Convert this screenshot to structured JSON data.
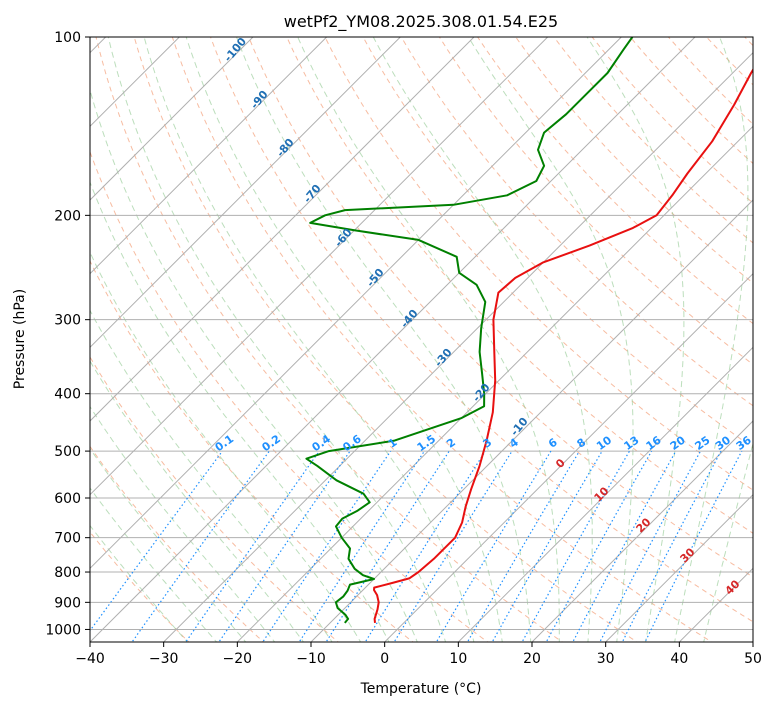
{
  "chart_data": {
    "type": "line",
    "title": "wetPf2_YM08.2025.308.01.54.E25",
    "xlabel": "Temperature (°C)",
    "ylabel": "Pressure (hPa)",
    "xlim": [
      -40,
      50
    ],
    "ylim": [
      1050,
      100
    ],
    "y_scale": "log",
    "grid": true,
    "x_ticks": [
      -40,
      -30,
      -20,
      -10,
      0,
      10,
      20,
      30,
      40,
      50
    ],
    "y_ticks": [
      100,
      200,
      300,
      400,
      500,
      600,
      700,
      800,
      900,
      1000
    ],
    "colors": {
      "temperature": "#e81010",
      "dewpoint": "#008000",
      "isotherm": "#b0b0b0",
      "dry_adiabat": "#f4a582",
      "moist_adiabat": "#8fc88f",
      "mixing_ratio": "#1e90ff"
    },
    "series": [
      {
        "key": "temperature",
        "color": "#e81010",
        "points": [
          {
            "p": 975,
            "t": -3.9
          },
          {
            "p": 960,
            "t": -4.5
          },
          {
            "p": 925,
            "t": -5.4
          },
          {
            "p": 900,
            "t": -6.2
          },
          {
            "p": 875,
            "t": -7.4
          },
          {
            "p": 858,
            "t": -8.5
          },
          {
            "p": 850,
            "t": -8.8
          },
          {
            "p": 835,
            "t": -7.0
          },
          {
            "p": 820,
            "t": -5.3
          },
          {
            "p": 800,
            "t": -4.9
          },
          {
            "p": 760,
            "t": -4.6
          },
          {
            "p": 700,
            "t": -4.6
          },
          {
            "p": 660,
            "t": -5.7
          },
          {
            "p": 620,
            "t": -7.4
          },
          {
            "p": 580,
            "t": -9.0
          },
          {
            "p": 530,
            "t": -11.0
          },
          {
            "p": 480,
            "t": -13.5
          },
          {
            "p": 430,
            "t": -16.5
          },
          {
            "p": 380,
            "t": -20.5
          },
          {
            "p": 340,
            "t": -24.5
          },
          {
            "p": 300,
            "t": -29.0
          },
          {
            "p": 270,
            "t": -32.0
          },
          {
            "p": 255,
            "t": -31.7
          },
          {
            "p": 240,
            "t": -30.0
          },
          {
            "p": 225,
            "t": -26.0
          },
          {
            "p": 210,
            "t": -22.5
          },
          {
            "p": 200,
            "t": -21.0
          },
          {
            "p": 185,
            "t": -21.6
          },
          {
            "p": 170,
            "t": -22.5
          },
          {
            "p": 150,
            "t": -23.5
          },
          {
            "p": 130,
            "t": -25.5
          },
          {
            "p": 115,
            "t": -27.5
          },
          {
            "p": 100,
            "t": -29.5
          }
        ]
      },
      {
        "key": "dewpoint",
        "color": "#008000",
        "points": [
          {
            "p": 975,
            "t": -8.0
          },
          {
            "p": 960,
            "t": -8.1
          },
          {
            "p": 945,
            "t": -9.0
          },
          {
            "p": 920,
            "t": -11.0
          },
          {
            "p": 900,
            "t": -12.0
          },
          {
            "p": 880,
            "t": -11.8
          },
          {
            "p": 860,
            "t": -12.0
          },
          {
            "p": 840,
            "t": -12.5
          },
          {
            "p": 822,
            "t": -10.0
          },
          {
            "p": 810,
            "t": -12.0
          },
          {
            "p": 790,
            "t": -14.0
          },
          {
            "p": 760,
            "t": -16.2
          },
          {
            "p": 730,
            "t": -17.4
          },
          {
            "p": 700,
            "t": -20.0
          },
          {
            "p": 670,
            "t": -22.3
          },
          {
            "p": 650,
            "t": -22.5
          },
          {
            "p": 630,
            "t": -21.5
          },
          {
            "p": 610,
            "t": -21.0
          },
          {
            "p": 590,
            "t": -23.0
          },
          {
            "p": 560,
            "t": -28.5
          },
          {
            "p": 530,
            "t": -33.0
          },
          {
            "p": 515,
            "t": -35.5
          },
          {
            "p": 500,
            "t": -33.5
          },
          {
            "p": 480,
            "t": -26.0
          },
          {
            "p": 440,
            "t": -20.0
          },
          {
            "p": 420,
            "t": -18.5
          },
          {
            "p": 400,
            "t": -20.2
          },
          {
            "p": 370,
            "t": -23.2
          },
          {
            "p": 340,
            "t": -26.5
          },
          {
            "p": 310,
            "t": -29.5
          },
          {
            "p": 280,
            "t": -32.5
          },
          {
            "p": 262,
            "t": -36.0
          },
          {
            "p": 250,
            "t": -40.0
          },
          {
            "p": 235,
            "t": -42.5
          },
          {
            "p": 220,
            "t": -50.0
          },
          {
            "p": 212,
            "t": -60.0
          },
          {
            "p": 206,
            "t": -67.0
          },
          {
            "p": 200,
            "t": -66.0
          },
          {
            "p": 196,
            "t": -64.0
          },
          {
            "p": 192,
            "t": -50.0
          },
          {
            "p": 185,
            "t": -44.0
          },
          {
            "p": 175,
            "t": -42.0
          },
          {
            "p": 165,
            "t": -43.0
          },
          {
            "p": 155,
            "t": -46.0
          },
          {
            "p": 145,
            "t": -47.5
          },
          {
            "p": 135,
            "t": -47.0
          },
          {
            "p": 125,
            "t": -47.0
          },
          {
            "p": 115,
            "t": -47.0
          },
          {
            "p": 105,
            "t": -48.0
          },
          {
            "p": 100,
            "t": -48.5
          }
        ]
      }
    ],
    "dry_adiabat_labels": [
      "-100",
      "-90",
      "-80",
      "-70",
      "-60",
      "-50",
      "-40",
      "-30",
      "-20",
      "-10"
    ],
    "moist_adiabat_labels": [
      "0",
      "10",
      "20",
      "30",
      "40"
    ],
    "mixing_ratio_labels": [
      "0.1",
      "0.2",
      "0.4",
      "0.6",
      "1",
      "1.5",
      "2",
      "3",
      "4",
      "6",
      "8",
      "10",
      "13",
      "16",
      "20",
      "25",
      "30",
      "36"
    ]
  }
}
